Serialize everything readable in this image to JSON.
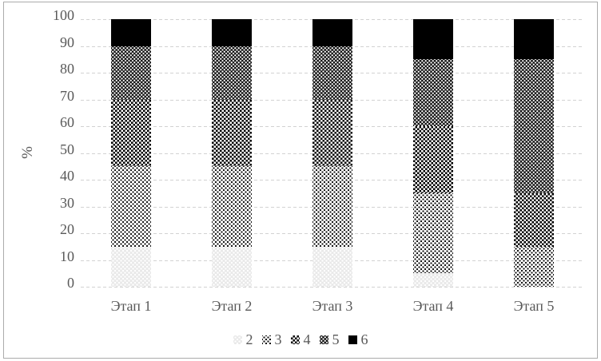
{
  "figure": {
    "ylabel": "%",
    "yticks": [
      100,
      90,
      80,
      70,
      60,
      50,
      40,
      30,
      20,
      10,
      0
    ],
    "text_color": "#595959",
    "gridline_color": "#d2d2d2",
    "legend": [
      {
        "label": "2",
        "pattern": "pat2",
        "swatch": "light-gray-dots-swatch"
      },
      {
        "label": "3",
        "pattern": "pat3",
        "swatch": "sparse-black-dots-swatch"
      },
      {
        "label": "4",
        "pattern": "pat4",
        "swatch": "checkerboard-swatch"
      },
      {
        "label": "5",
        "pattern": "pat5",
        "swatch": "dark-white-dots-swatch"
      },
      {
        "label": "6",
        "pattern": "pat6",
        "swatch": "solid-black-swatch"
      }
    ]
  },
  "chart_data": {
    "type": "bar",
    "stacked": true,
    "units": "percent",
    "title": "",
    "xlabel": "",
    "ylabel": "%",
    "ylim": [
      0,
      100
    ],
    "ytick_step": 10,
    "grid": true,
    "legend_position": "bottom",
    "categories": [
      "Этап 1",
      "Этап 2",
      "Этап 3",
      "Этап 4",
      "Этап 5"
    ],
    "series": [
      {
        "name": "2",
        "values": [
          15,
          15,
          15,
          5,
          0
        ]
      },
      {
        "name": "3",
        "values": [
          30,
          30,
          30,
          30,
          15
        ]
      },
      {
        "name": "4",
        "values": [
          25,
          25,
          25,
          25,
          20
        ]
      },
      {
        "name": "5",
        "values": [
          20,
          20,
          20,
          25,
          50
        ]
      },
      {
        "name": "6",
        "values": [
          10,
          10,
          10,
          15,
          15
        ]
      }
    ]
  }
}
